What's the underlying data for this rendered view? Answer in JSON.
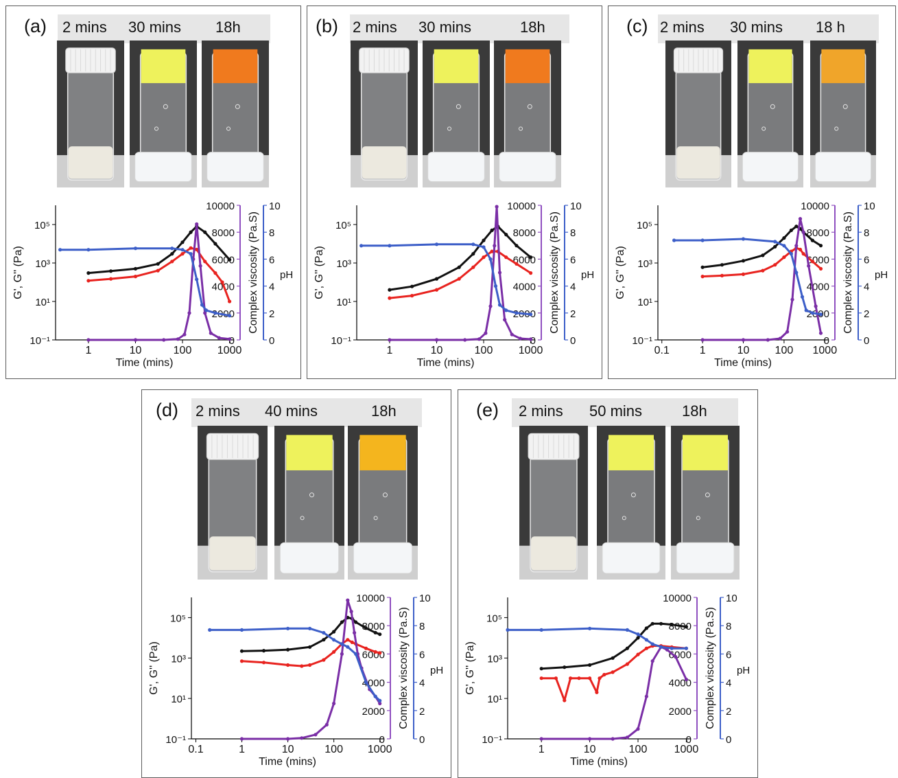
{
  "colors": {
    "g_prime": "#111111",
    "g_double_prime": "#e8231f",
    "complex_viscosity": "#7a2ea6",
    "ph": "#3c5ec8",
    "viscosity_axis": "#8f4fc0",
    "ph_axis": "#3c5ec8",
    "photo_background": "#3a3a3a",
    "cap_white": "#f2f2f2",
    "gel_yellow": "#eef25c",
    "gel_orange": "#f07a1e",
    "gel_amber": "#f0a52a",
    "gel_gold": "#f4b51e"
  },
  "panels": [
    {
      "label": "(a)",
      "times": [
        "2 mins",
        "30 mins",
        "18h"
      ],
      "gel_colors": [
        "gel_yellow",
        "gel_orange"
      ]
    },
    {
      "label": "(b)",
      "times": [
        "2 mins",
        "30 mins",
        "18h"
      ],
      "gel_colors": [
        "gel_yellow",
        "gel_orange"
      ]
    },
    {
      "label": "(c)",
      "times": [
        "2 mins",
        "30 mins",
        "18 h"
      ],
      "gel_colors": [
        "gel_yellow",
        "gel_amber"
      ]
    },
    {
      "label": "(d)",
      "times": [
        "2 mins",
        "40 mins",
        "18h"
      ],
      "gel_colors": [
        "gel_yellow",
        "gel_gold"
      ]
    },
    {
      "label": "(e)",
      "times": [
        "2 mins",
        "50 mins",
        "18h"
      ],
      "gel_colors": [
        "gel_yellow",
        "gel_yellow"
      ]
    }
  ],
  "chart_data": [
    {
      "panel": "(a)",
      "type": "line",
      "xlabel": "Time (mins)",
      "ylabel_left": "G', G'' (Pa)",
      "ylabel_viscosity": "Complex viscosity (Pa.S)",
      "ylabel_ph": "pH",
      "xscale": "log",
      "xlim": [
        0.2,
        1200
      ],
      "xticks": [
        1,
        10,
        100,
        1000
      ],
      "xtick_labels": [
        "1",
        "10",
        "100",
        "1000"
      ],
      "yscale_left": "log",
      "ylim_left": [
        0.1,
        1000000
      ],
      "yticks_left": [
        0.1,
        10,
        1000,
        100000
      ],
      "ylim_viscosity": [
        0,
        10000
      ],
      "yticks_viscosity": [
        0,
        2000,
        4000,
        6000,
        8000,
        10000
      ],
      "ylim_ph": [
        0,
        10
      ],
      "yticks_ph": [
        0,
        2,
        4,
        6,
        8,
        10
      ],
      "series": [
        {
          "axis": "left",
          "color_key": "g_prime",
          "x": [
            1,
            3,
            10,
            30,
            60,
            100,
            150,
            200,
            300,
            500,
            1000
          ],
          "y": [
            300,
            380,
            500,
            900,
            3000,
            12000,
            40000,
            80000,
            40000,
            10000,
            1500
          ]
        },
        {
          "axis": "left",
          "color_key": "g_double_prime",
          "x": [
            1,
            3,
            10,
            30,
            60,
            100,
            150,
            200,
            300,
            500,
            700,
            1000
          ],
          "y": [
            120,
            150,
            200,
            400,
            1200,
            3000,
            6000,
            5000,
            1200,
            300,
            100,
            10
          ]
        },
        {
          "axis": "viscosity",
          "color_key": "complex_viscosity",
          "x": [
            1,
            10,
            40,
            80,
            110,
            140,
            170,
            200,
            240,
            300,
            400,
            600,
            1000
          ],
          "y": [
            0,
            0,
            0,
            60,
            400,
            2000,
            6000,
            8600,
            5500,
            2000,
            500,
            150,
            60
          ]
        },
        {
          "axis": "ph",
          "color_key": "ph",
          "x": [
            0.25,
            1,
            10,
            60,
            100,
            150,
            200,
            260,
            320,
            500,
            1000
          ],
          "y": [
            6.7,
            6.7,
            6.8,
            6.8,
            6.7,
            6.4,
            4.5,
            2.6,
            2.2,
            2.0,
            1.8
          ]
        }
      ]
    },
    {
      "panel": "(b)",
      "type": "line",
      "xlabel": "Time (mins)",
      "ylabel_left": "G', G'' (Pa)",
      "ylabel_viscosity": "Complex viscosity (Pa.S)",
      "ylabel_ph": "pH",
      "xscale": "log",
      "xlim": [
        0.2,
        1200
      ],
      "xticks": [
        1,
        10,
        100,
        1000
      ],
      "xtick_labels": [
        "1",
        "10",
        "100",
        "1000"
      ],
      "yscale_left": "log",
      "ylim_left": [
        0.1,
        1000000
      ],
      "yticks_left": [
        0.1,
        10,
        1000,
        100000
      ],
      "ylim_viscosity": [
        0,
        10000
      ],
      "yticks_viscosity": [
        0,
        2000,
        4000,
        6000,
        8000,
        10000
      ],
      "ylim_ph": [
        0,
        10
      ],
      "yticks_ph": [
        0,
        2,
        4,
        6,
        8,
        10
      ],
      "series": [
        {
          "axis": "left",
          "color_key": "g_prime",
          "x": [
            1,
            3,
            10,
            30,
            60,
            100,
            150,
            200,
            300,
            500,
            1000
          ],
          "y": [
            40,
            60,
            150,
            600,
            3000,
            15000,
            50000,
            80000,
            30000,
            8000,
            2000
          ]
        },
        {
          "axis": "left",
          "color_key": "g_double_prime",
          "x": [
            1,
            3,
            10,
            30,
            60,
            100,
            150,
            200,
            300,
            500,
            1000
          ],
          "y": [
            15,
            20,
            40,
            150,
            600,
            2000,
            4000,
            4000,
            2000,
            900,
            300
          ]
        },
        {
          "axis": "viscosity",
          "color_key": "complex_viscosity",
          "x": [
            1,
            10,
            40,
            80,
            110,
            140,
            170,
            190,
            220,
            280,
            400,
            600,
            1000
          ],
          "y": [
            0,
            0,
            0,
            60,
            500,
            2500,
            7000,
            9900,
            5000,
            1500,
            400,
            100,
            50
          ]
        },
        {
          "axis": "ph",
          "color_key": "ph",
          "x": [
            0.25,
            1,
            10,
            60,
            100,
            140,
            180,
            220,
            300,
            500,
            1000
          ],
          "y": [
            7.0,
            7.0,
            7.1,
            7.1,
            6.9,
            6.0,
            4.0,
            2.6,
            2.2,
            2.0,
            1.9
          ]
        }
      ]
    },
    {
      "panel": "(c)",
      "type": "line",
      "xlabel": "Time (mins)",
      "ylabel_left": "G', G'' (Pa)",
      "ylabel_viscosity": "Complex viscosity (Pa.S)",
      "ylabel_ph": "pH",
      "xscale": "log",
      "xlim": [
        0.08,
        1200
      ],
      "xticks": [
        0.1,
        1,
        10,
        100,
        1000
      ],
      "xtick_labels": [
        "0.1",
        "1",
        "10",
        "100",
        "1000"
      ],
      "yscale_left": "log",
      "ylim_left": [
        0.1,
        1000000
      ],
      "yticks_left": [
        0.1,
        10,
        1000,
        100000
      ],
      "ylim_viscosity": [
        0,
        10000
      ],
      "yticks_viscosity": [
        0,
        2000,
        4000,
        6000,
        8000,
        10000
      ],
      "ylim_ph": [
        0,
        10
      ],
      "yticks_ph": [
        0,
        2,
        4,
        6,
        8,
        10
      ],
      "series": [
        {
          "axis": "left",
          "color_key": "g_prime",
          "x": [
            1,
            3,
            10,
            30,
            60,
            100,
            150,
            200,
            250,
            300,
            500,
            800
          ],
          "y": [
            600,
            800,
            1300,
            2500,
            7000,
            20000,
            50000,
            80000,
            60000,
            40000,
            15000,
            8000
          ]
        },
        {
          "axis": "left",
          "color_key": "g_double_prime",
          "x": [
            1,
            3,
            10,
            30,
            60,
            100,
            150,
            200,
            250,
            300,
            500,
            800
          ],
          "y": [
            200,
            220,
            260,
            400,
            800,
            2000,
            4000,
            6000,
            5000,
            3000,
            1200,
            500
          ]
        },
        {
          "axis": "viscosity",
          "color_key": "complex_viscosity",
          "x": [
            1,
            10,
            40,
            80,
            120,
            160,
            200,
            250,
            300,
            400,
            600,
            800
          ],
          "y": [
            0,
            0,
            0,
            100,
            600,
            3000,
            7000,
            9000,
            8000,
            5500,
            2500,
            500
          ]
        },
        {
          "axis": "ph",
          "color_key": "ph",
          "x": [
            0.2,
            1,
            10,
            60,
            100,
            150,
            200,
            280,
            350,
            500,
            800
          ],
          "y": [
            7.4,
            7.4,
            7.5,
            7.3,
            7.0,
            6.4,
            5.0,
            3.2,
            2.2,
            2.0,
            1.9
          ]
        }
      ]
    },
    {
      "panel": "(d)",
      "type": "line",
      "xlabel": "Time (mins)",
      "ylabel_left": "G', G'' (Pa)",
      "ylabel_viscosity": "Complex viscosity (Pa.S)",
      "ylabel_ph": "pH",
      "xscale": "log",
      "xlim": [
        0.08,
        1200
      ],
      "xticks": [
        0.1,
        1,
        10,
        100,
        1000
      ],
      "xtick_labels": [
        "0.1",
        "1",
        "10",
        "100",
        "1000"
      ],
      "yscale_left": "log",
      "ylim_left": [
        0.1,
        1000000
      ],
      "yticks_left": [
        0.1,
        10,
        1000,
        100000
      ],
      "ylim_viscosity": [
        0,
        10000
      ],
      "yticks_viscosity": [
        0,
        2000,
        4000,
        6000,
        8000,
        10000
      ],
      "ylim_ph": [
        0,
        10
      ],
      "yticks_ph": [
        0,
        2,
        4,
        6,
        8,
        10
      ],
      "series": [
        {
          "axis": "left",
          "color_key": "g_prime",
          "x": [
            1,
            3,
            10,
            30,
            60,
            100,
            150,
            200,
            250,
            300,
            500,
            800,
            1000
          ],
          "y": [
            2200,
            2300,
            2600,
            3500,
            8000,
            20000,
            60000,
            100000,
            90000,
            60000,
            30000,
            18000,
            15000
          ]
        },
        {
          "axis": "left",
          "color_key": "g_double_prime",
          "x": [
            1,
            3,
            10,
            20,
            30,
            60,
            100,
            150,
            200,
            250,
            300,
            500,
            800,
            1000
          ],
          "y": [
            700,
            600,
            450,
            400,
            450,
            800,
            2000,
            5000,
            8000,
            6000,
            5000,
            3000,
            2000,
            1800
          ]
        },
        {
          "axis": "viscosity",
          "color_key": "complex_viscosity",
          "x": [
            1,
            10,
            20,
            40,
            70,
            100,
            150,
            200,
            240,
            280,
            330,
            400,
            600,
            800,
            1000
          ],
          "y": [
            0,
            0,
            60,
            300,
            1000,
            2500,
            6000,
            9800,
            9000,
            7500,
            6000,
            5000,
            3500,
            3000,
            2500
          ]
        },
        {
          "axis": "ph",
          "color_key": "ph",
          "x": [
            0.2,
            1,
            10,
            30,
            60,
            100,
            150,
            200,
            300,
            500,
            800,
            1000
          ],
          "y": [
            7.7,
            7.7,
            7.8,
            7.8,
            7.5,
            7.0,
            6.7,
            6.5,
            6.0,
            4.0,
            3.0,
            2.7
          ]
        }
      ]
    },
    {
      "panel": "(e)",
      "type": "line",
      "xlabel": "Time (mins)",
      "ylabel_left": "G', G'' (Pa)",
      "ylabel_viscosity": "Complex viscosity (Pa.S)",
      "ylabel_ph": "pH",
      "xscale": "log",
      "xlim": [
        0.2,
        1200
      ],
      "xticks": [
        1,
        10,
        100,
        1000
      ],
      "xtick_labels": [
        "1",
        "10",
        "100",
        "1000"
      ],
      "yscale_left": "log",
      "ylim_left": [
        0.1,
        1000000
      ],
      "yticks_left": [
        0.1,
        10,
        1000,
        100000
      ],
      "ylim_viscosity": [
        0,
        10000
      ],
      "yticks_viscosity": [
        0,
        2000,
        4000,
        6000,
        8000,
        10000
      ],
      "ylim_ph": [
        0,
        10
      ],
      "yticks_ph": [
        0,
        2,
        4,
        6,
        8,
        10
      ],
      "series": [
        {
          "axis": "left",
          "color_key": "g_prime",
          "x": [
            1,
            3,
            10,
            30,
            60,
            100,
            150,
            200,
            300,
            500,
            1000
          ],
          "y": [
            300,
            350,
            450,
            1000,
            3000,
            10000,
            30000,
            50000,
            50000,
            45000,
            35000
          ]
        },
        {
          "axis": "left",
          "color_key": "g_double_prime",
          "x": [
            1,
            2,
            3,
            4,
            6,
            10,
            14,
            16,
            20,
            30,
            60,
            100,
            150,
            200,
            300,
            500,
            1000
          ],
          "y": [
            100,
            100,
            8,
            100,
            100,
            100,
            20,
            100,
            150,
            200,
            500,
            1500,
            3000,
            4000,
            4000,
            3500,
            3000
          ]
        },
        {
          "axis": "viscosity",
          "color_key": "complex_viscosity",
          "x": [
            1,
            10,
            30,
            60,
            100,
            150,
            200,
            300,
            400,
            600,
            1000
          ],
          "y": [
            0,
            0,
            0,
            100,
            700,
            3000,
            5500,
            6500,
            6300,
            5800,
            4200
          ]
        },
        {
          "axis": "ph",
          "color_key": "ph",
          "x": [
            0.2,
            1,
            10,
            60,
            100,
            150,
            200,
            300,
            500,
            1000
          ],
          "y": [
            7.7,
            7.7,
            7.8,
            7.7,
            7.4,
            7.0,
            6.7,
            6.5,
            6.4,
            6.4
          ]
        }
      ]
    }
  ]
}
